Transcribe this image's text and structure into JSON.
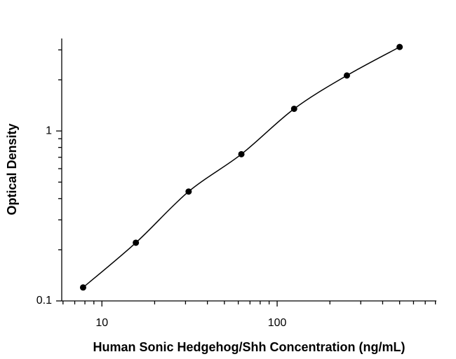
{
  "chart_data": {
    "type": "scatter",
    "x_label": "Human Sonic Hedgehog/Shh Concentration (ng/mL)",
    "y_label": "Optical Density",
    "x": [
      7.8125,
      15.625,
      31.25,
      62.5,
      125,
      250,
      500
    ],
    "series": [
      {
        "color": "#000000",
        "values": [
          0.12,
          0.22,
          0.44,
          0.73,
          1.35,
          2.12,
          3.12
        ]
      }
    ],
    "xlim": [
      5.9,
      810
    ],
    "ylim": [
      0.1,
      3.5
    ],
    "xticks": [
      10,
      100
    ],
    "yticks": [
      0.1,
      1
    ],
    "x_minor_ticks": [
      6,
      7,
      8,
      9,
      20,
      30,
      40,
      50,
      60,
      70,
      80,
      90,
      200,
      300,
      400,
      500,
      600,
      700,
      800
    ],
    "y_minor_ticks": [
      0.2,
      0.3,
      0.4,
      0.5,
      0.6,
      0.7,
      0.8,
      0.9,
      2,
      3
    ],
    "xscale": "log",
    "yscale": "log",
    "curve": true
  }
}
